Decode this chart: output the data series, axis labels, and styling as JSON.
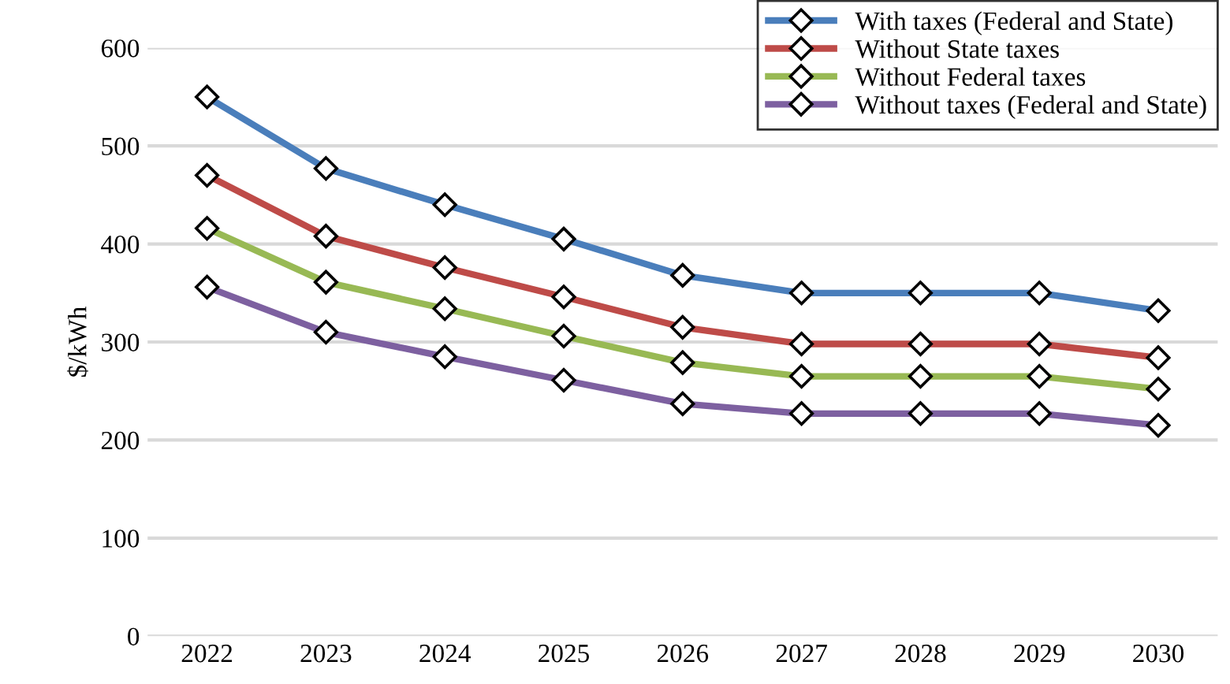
{
  "chart_data": {
    "type": "line",
    "ylabel": "$/kWh",
    "categories": [
      "2022",
      "2023",
      "2024",
      "2025",
      "2026",
      "2027",
      "2028",
      "2029",
      "2030"
    ],
    "series": [
      {
        "name": "With taxes (Federal and State)",
        "color": "#4a7ebb",
        "values": [
          550,
          477,
          440,
          405,
          368,
          350,
          350,
          350,
          332
        ]
      },
      {
        "name": "Without State taxes",
        "color": "#be4b48",
        "values": [
          470,
          408,
          376,
          346,
          315,
          298,
          298,
          298,
          284
        ]
      },
      {
        "name": "Without Federal taxes",
        "color": "#98b954",
        "values": [
          416,
          361,
          334,
          306,
          279,
          265,
          265,
          265,
          252
        ]
      },
      {
        "name": "Without taxes (Federal and State)",
        "color": "#7d60a0",
        "values": [
          356,
          310,
          285,
          261,
          237,
          227,
          227,
          227,
          215
        ]
      }
    ],
    "ylim": [
      0,
      600
    ],
    "yticks": [
      0,
      100,
      200,
      300,
      400,
      500,
      600
    ],
    "grid": "y",
    "legend": "top right",
    "marker": "diamond",
    "line_style": "solid"
  }
}
